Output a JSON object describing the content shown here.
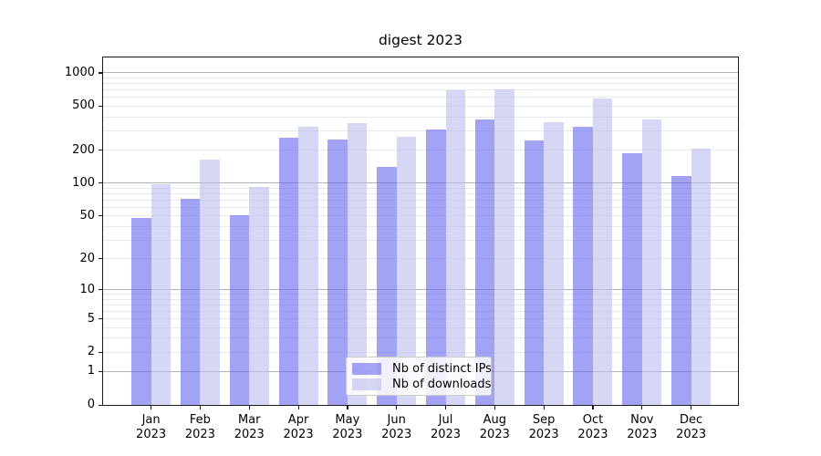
{
  "chart_data": {
    "type": "bar",
    "title": "digest 2023",
    "categories": [
      "Jan 2023",
      "Feb 2023",
      "Mar 2023",
      "Apr 2023",
      "May 2023",
      "Jun 2023",
      "Jul 2023",
      "Aug 2023",
      "Sep 2023",
      "Oct 2023",
      "Nov 2023",
      "Dec 2023"
    ],
    "series": [
      {
        "name": "Nb of distinct IPs",
        "color": "#6666ee",
        "values": [
          48,
          72,
          51,
          257,
          250,
          140,
          310,
          382,
          245,
          326,
          186,
          117
        ]
      },
      {
        "name": "Nb of downloads",
        "color": "#bbbbee",
        "values": [
          97,
          165,
          93,
          328,
          354,
          265,
          700,
          715,
          358,
          590,
          382,
          206
        ]
      }
    ],
    "xlabel": "",
    "ylabel": "",
    "yscale": "log1p",
    "yticks": [
      1000,
      500,
      200,
      100,
      50,
      20,
      10,
      5,
      2,
      1,
      0
    ],
    "ylim": [
      0,
      1365
    ],
    "grid": "on",
    "legend_position": "lower center"
  },
  "colors": {
    "bar_distinct_ips": "#6666ee",
    "bar_downloads": "#bbbbee",
    "bar_alpha": 0.6,
    "grid_major": "#b2b2b2",
    "grid_minor": "#e9e9e9",
    "spine": "#1a1a1a",
    "background": "#ffffff"
  }
}
